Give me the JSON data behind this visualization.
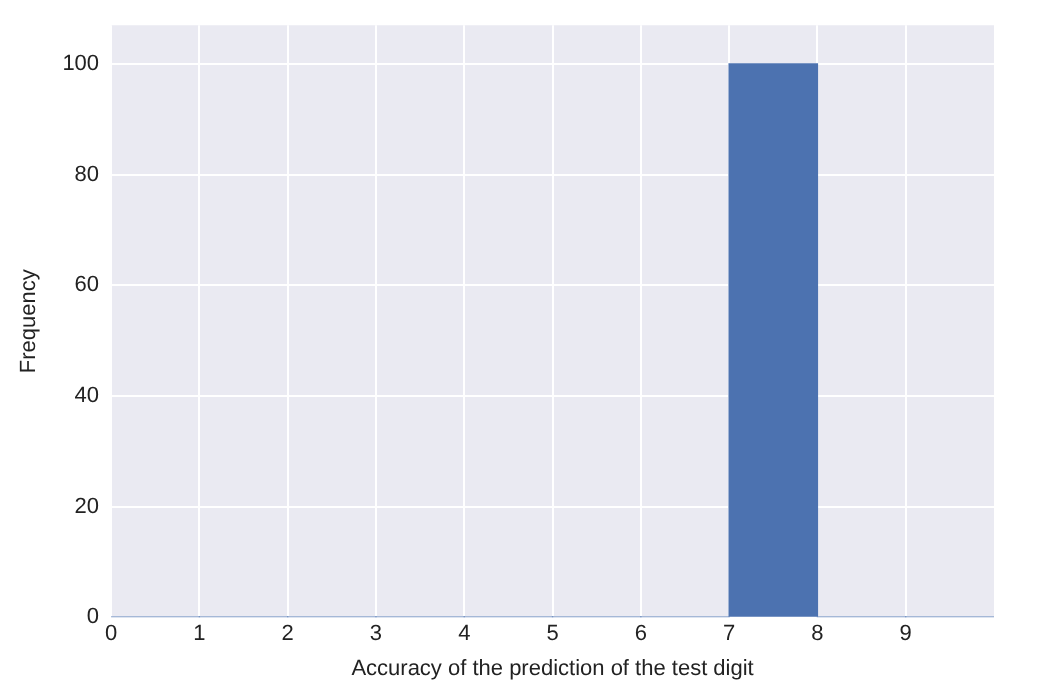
{
  "chart_data": {
    "type": "histogram",
    "xlabel": "Accuracy of the prediction of the test digit",
    "ylabel": "Frequency",
    "bins": [
      0,
      1,
      2,
      3,
      4,
      5,
      6,
      7,
      8,
      9,
      10
    ],
    "values": [
      0,
      0,
      0,
      0,
      0,
      0,
      0,
      100,
      0,
      0
    ],
    "color": "#4c72b0",
    "xlim": [
      0,
      10
    ],
    "xticks": [
      0,
      1,
      2,
      3,
      4,
      5,
      6,
      7,
      8,
      9
    ],
    "ylim": [
      0,
      107
    ],
    "yticks": [
      0,
      20,
      40,
      60,
      80,
      100
    ],
    "grid": true,
    "legend": false
  }
}
